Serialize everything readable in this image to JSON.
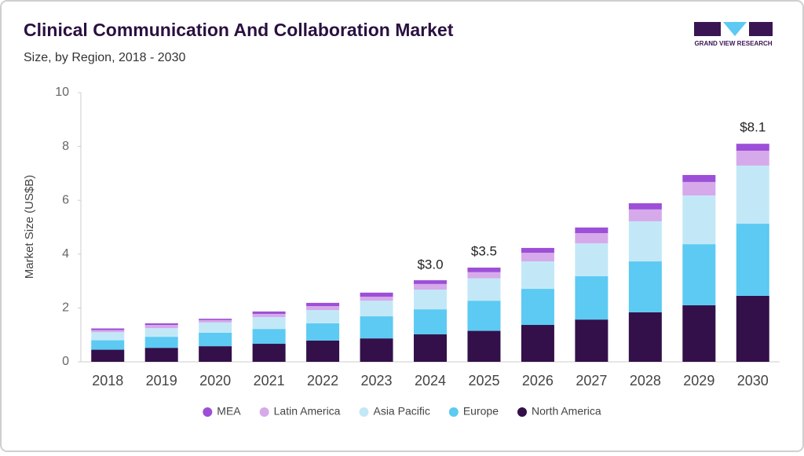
{
  "brand": "GRAND VIEW RESEARCH",
  "chart_data": {
    "type": "stacked_bar",
    "title": "Clinical Communication And Collaboration Market",
    "subtitle": "Size, by Region, 2018 - 2030",
    "y_label": "Market Size (US$B)",
    "categories": [
      "2018",
      "2019",
      "2020",
      "2021",
      "2022",
      "2023",
      "2024",
      "2025",
      "2026",
      "2027",
      "2028",
      "2029",
      "2030"
    ],
    "series": [
      {
        "name": "North America",
        "color": "#33104a",
        "values": [
          0.45,
          0.52,
          0.58,
          0.67,
          0.79,
          0.87,
          1.02,
          1.15,
          1.37,
          1.57,
          1.84,
          2.1,
          2.45
        ]
      },
      {
        "name": "Europe",
        "color": "#5ccaf2",
        "values": [
          0.35,
          0.41,
          0.5,
          0.55,
          0.64,
          0.82,
          0.93,
          1.12,
          1.34,
          1.61,
          1.89,
          2.27,
          2.68
        ]
      },
      {
        "name": "Asia Pacific",
        "color": "#c2e8f8",
        "values": [
          0.3,
          0.32,
          0.38,
          0.44,
          0.49,
          0.58,
          0.73,
          0.83,
          1.02,
          1.22,
          1.49,
          1.81,
          2.16
        ]
      },
      {
        "name": "Latin America",
        "color": "#d6aaea",
        "values": [
          0.08,
          0.12,
          0.09,
          0.12,
          0.15,
          0.15,
          0.21,
          0.23,
          0.32,
          0.38,
          0.44,
          0.5,
          0.55
        ]
      },
      {
        "name": "MEA",
        "color": "#9d4fd8",
        "values": [
          0.06,
          0.06,
          0.05,
          0.09,
          0.12,
          0.15,
          0.14,
          0.17,
          0.18,
          0.21,
          0.23,
          0.26,
          0.26
        ]
      }
    ],
    "totals": [
      null,
      null,
      null,
      null,
      null,
      null,
      3.0,
      3.5,
      null,
      null,
      null,
      null,
      8.1
    ],
    "total_labels": [
      null,
      null,
      null,
      null,
      null,
      null,
      "$3.0",
      "$3.5",
      null,
      null,
      null,
      null,
      "$8.1"
    ],
    "ylim": [
      0,
      10
    ],
    "yticks": [
      0,
      2,
      4,
      6,
      8,
      10
    ],
    "grid": false,
    "legend": "bottom"
  }
}
